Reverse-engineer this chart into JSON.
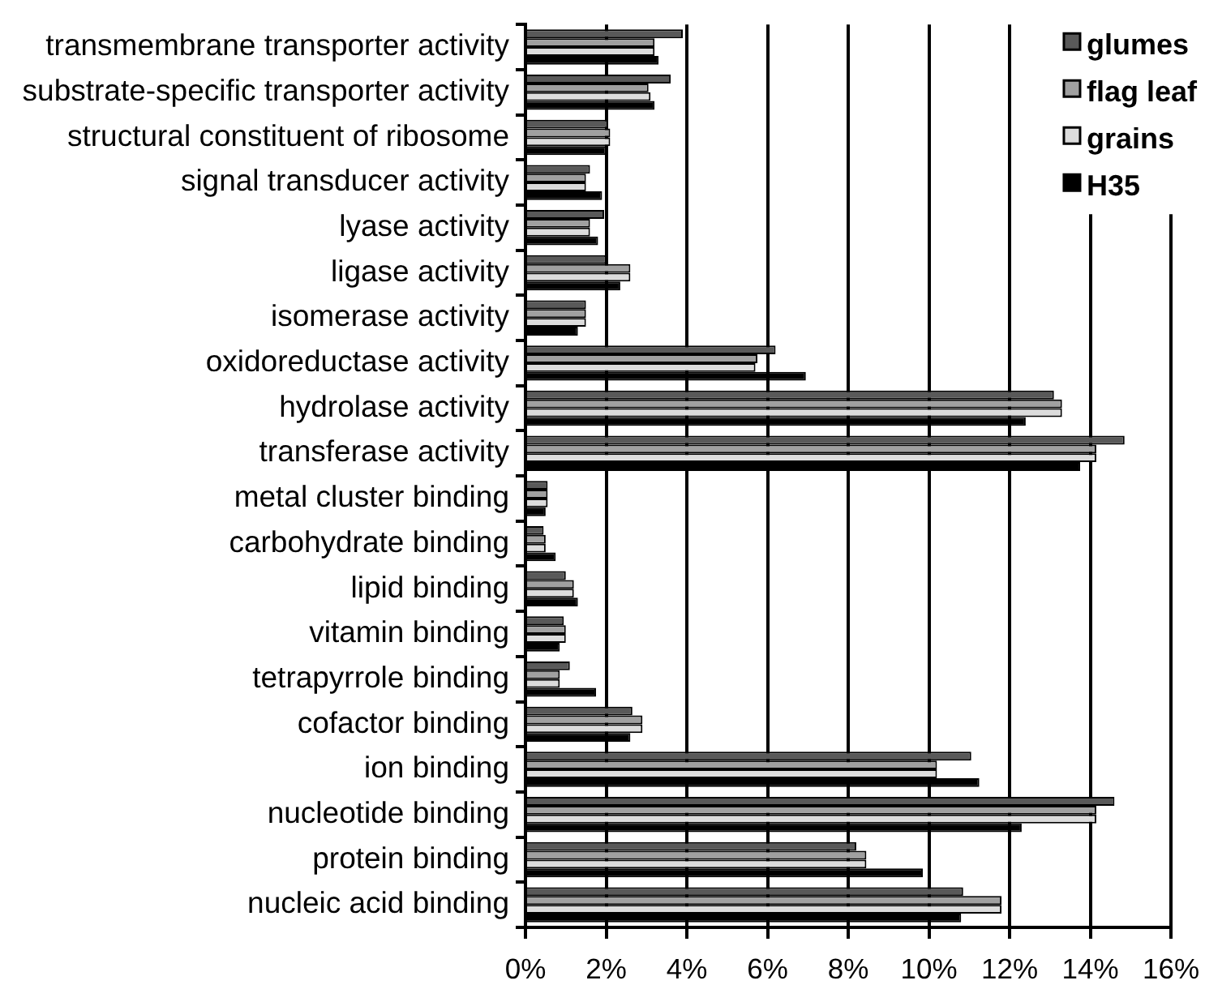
{
  "chart_data": {
    "type": "bar",
    "orientation": "horizontal",
    "categories": [
      "transmembrane transporter activity",
      "substrate-specific transporter activity",
      "structural constituent of ribosome",
      "signal transducer activity",
      "lyase activity",
      "ligase activity",
      "isomerase activity",
      "oxidoreductase activity",
      "hydrolase activity",
      "transferase activity",
      "metal cluster binding",
      "carbohydrate binding",
      "lipid binding",
      "vitamin binding",
      "tetrapyrrole binding",
      "cofactor binding",
      "ion binding",
      "nucleotide binding",
      "protein binding",
      "nucleic acid binding"
    ],
    "series": [
      {
        "name": "glumes",
        "color": "#595959",
        "values": [
          3.9,
          3.6,
          2.05,
          1.6,
          1.95,
          2.0,
          1.5,
          6.2,
          13.1,
          14.85,
          0.55,
          0.45,
          1.0,
          0.95,
          1.1,
          2.65,
          11.05,
          14.6,
          8.2,
          10.85
        ]
      },
      {
        "name": "flag leaf",
        "color": "#a0a0a0",
        "values": [
          3.2,
          3.05,
          2.1,
          1.5,
          1.6,
          2.6,
          1.5,
          5.75,
          13.3,
          14.15,
          0.55,
          0.5,
          1.2,
          1.0,
          0.85,
          2.9,
          10.2,
          14.15,
          8.45,
          11.8
        ]
      },
      {
        "name": "grains",
        "color": "#dcdcdc",
        "values": [
          3.2,
          3.1,
          2.1,
          1.5,
          1.6,
          2.6,
          1.5,
          5.7,
          13.3,
          14.15,
          0.55,
          0.5,
          1.2,
          1.0,
          0.85,
          2.9,
          10.2,
          14.15,
          8.45,
          11.8
        ]
      },
      {
        "name": "H35",
        "color": "#000000",
        "values": [
          3.3,
          3.2,
          2.0,
          1.9,
          1.8,
          2.35,
          1.3,
          6.95,
          12.4,
          13.75,
          0.5,
          0.75,
          1.3,
          0.85,
          1.75,
          2.6,
          11.25,
          12.3,
          9.85,
          10.8
        ]
      }
    ],
    "xlim": [
      0,
      16
    ],
    "xticks": [
      {
        "value": 0,
        "label": "0%"
      },
      {
        "value": 2,
        "label": "2%"
      },
      {
        "value": 4,
        "label": "4%"
      },
      {
        "value": 6,
        "label": "6%"
      },
      {
        "value": 8,
        "label": "8%"
      },
      {
        "value": 10,
        "label": "10%"
      },
      {
        "value": 12,
        "label": "12%"
      },
      {
        "value": 14,
        "label": "14%"
      },
      {
        "value": 16,
        "label": "16%"
      }
    ],
    "grid": "x",
    "legend": "top right"
  }
}
